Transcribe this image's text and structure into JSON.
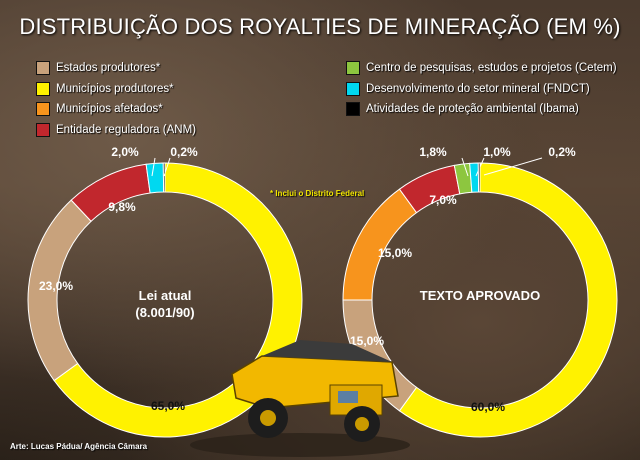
{
  "title": "DISTRIBUIÇÃO DOS ROYALTIES DE MINERAÇÃO (EM %)",
  "note": "* Inclui o Distrito Federal",
  "credit": "Arte: Lucas Pádua/ Agência Câmara",
  "legend": [
    {
      "label": "Estados produtores*",
      "color": "#c8a27c"
    },
    {
      "label": "Municípios produtores*",
      "color": "#fff200"
    },
    {
      "label": "Municípios afetados*",
      "color": "#f7941d"
    },
    {
      "label": "Entidade reguladora (ANM)",
      "color": "#c1272d"
    },
    {
      "label": "Centro de pesquisas, estudos e projetos (Cetem)",
      "color": "#8dc63f"
    },
    {
      "label": "Desenvolvimento do setor mineral (FNDCT)",
      "color": "#00d8f0"
    },
    {
      "label": "Atividades de proteção ambiental (Ibama)",
      "color": "#000000"
    }
  ],
  "chart_data": [
    {
      "type": "pie",
      "title": "",
      "center_label": [
        "Lei atual",
        "(8.001/90)"
      ],
      "slices": [
        {
          "category": "Municípios produtores*",
          "value": 65.0,
          "label": "65,0%",
          "color": "#fff200"
        },
        {
          "category": "Estados produtores*",
          "value": 23.0,
          "label": "23,0%",
          "color": "#c8a27c"
        },
        {
          "category": "Entidade reguladora (ANM)",
          "value": 9.8,
          "label": "9,8%",
          "color": "#c1272d"
        },
        {
          "category": "Desenvolvimento do setor mineral (FNDCT)",
          "value": 2.0,
          "label": "2,0%",
          "color": "#00d8f0"
        },
        {
          "category": "Atividades de proteção ambiental (Ibama)",
          "value": 0.2,
          "label": "0,2%",
          "color": "#000000"
        }
      ]
    },
    {
      "type": "pie",
      "title": "",
      "center_label": [
        "TEXTO APROVADO"
      ],
      "slices": [
        {
          "category": "Municípios produtores*",
          "value": 60.0,
          "label": "60,0%",
          "color": "#fff200"
        },
        {
          "category": "Estados produtores*",
          "value": 15.0,
          "label": "15,0%",
          "color": "#c8a27c"
        },
        {
          "category": "Municípios afetados*",
          "value": 15.0,
          "label": "15,0%",
          "color": "#f7941d"
        },
        {
          "category": "Entidade reguladora (ANM)",
          "value": 7.0,
          "label": "7,0%",
          "color": "#c1272d"
        },
        {
          "category": "Centro de pesquisas, estudos e projetos (Cetem)",
          "value": 1.8,
          "label": "1,8%",
          "color": "#8dc63f"
        },
        {
          "category": "Desenvolvimento do setor mineral (FNDCT)",
          "value": 1.0,
          "label": "1,0%",
          "color": "#00d8f0"
        },
        {
          "category": "Atividades de proteção ambiental (Ibama)",
          "value": 0.2,
          "label": "0,2%",
          "color": "#000000"
        }
      ]
    }
  ]
}
